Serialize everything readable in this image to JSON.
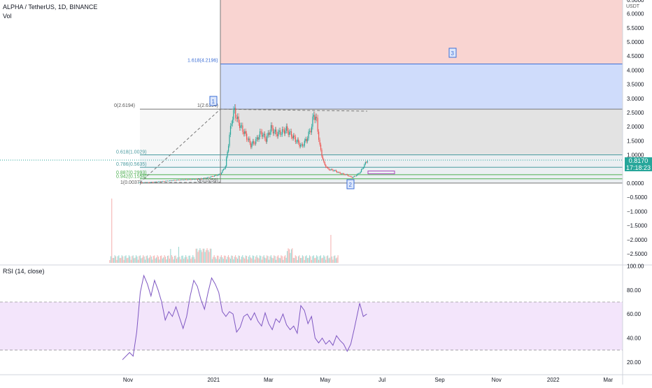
{
  "header": {
    "symbol_line": "ALPHA / TetherUS, 1D, BINANCE",
    "vol_label": "Vol",
    "rsi_label": "RSI (14, close)"
  },
  "price_axis": {
    "unit": "USDT",
    "ticks": [
      "6.0000",
      "5.5000",
      "5.0000",
      "4.5000",
      "4.0000",
      "3.5000",
      "3.0000",
      "2.5000",
      "2.0000",
      "1.5000",
      "1.0000",
      "0.5000",
      "0.0000",
      "−0.5000",
      "−1.0000",
      "−1.5000",
      "−2.0000",
      "−2.5000"
    ],
    "tick_values": [
      6.0,
      5.5,
      5.0,
      4.5,
      4.0,
      3.5,
      3.0,
      2.5,
      2.0,
      1.5,
      1.0,
      0.5,
      0.0,
      -0.5,
      -1.0,
      -1.5,
      -2.0,
      -2.5
    ],
    "top_partial": "6.5000"
  },
  "rsi_axis": {
    "ticks": [
      "100.00",
      "80.00",
      "60.00",
      "40.00",
      "20.00"
    ],
    "tick_values": [
      100,
      80,
      60,
      40,
      20
    ],
    "upper_band": 70,
    "lower_band": 30
  },
  "time_axis": {
    "labels": [
      "Nov",
      "2021",
      "Mar",
      "May",
      "Jul",
      "Sep",
      "Nov",
      "2022",
      "Mar"
    ],
    "label_days": [
      0,
      92,
      151,
      212,
      273,
      335,
      396,
      457,
      516
    ]
  },
  "current_price": {
    "value": "0.8170",
    "countdown": "17:18:23",
    "price": 0.817
  },
  "fib_extension": {
    "levels": [
      {
        "label": "0(2.6194)",
        "value": 2.6194
      },
      {
        "label": "1(2.6194)",
        "value": 2.6194
      },
      {
        "label": "1.618(4.2196)",
        "value": 4.2196
      },
      {
        "label": "0.618(1.0029)",
        "value": 1.0029
      },
      {
        "label": "0.786(0.5635)",
        "value": 0.5635
      },
      {
        "label": "0.887(0.2993)",
        "value": 0.2993
      },
      {
        "label": "0.942(0.1554)",
        "value": 0.1554
      },
      {
        "label": "1(0.0037)",
        "value": 0.0037
      },
      {
        "label": "0(0.0259)",
        "value": 0.0259
      }
    ],
    "markers": [
      "1",
      "2",
      "3"
    ],
    "colors": {
      "zone_red": "#f9d4d1",
      "zone_blue": "#cfdcfb",
      "zone_gray": "#e3e3e3",
      "zone_light": "#eef4f8",
      "line_teal": "#4a9ba0",
      "line_blue": "#3d6fd6",
      "line_green": "#4caf50",
      "line_gray": "#787878"
    }
  },
  "candles": {
    "up_color": "#26a69a",
    "down_color": "#ef5350",
    "close_path": [
      [
        0,
        0.02
      ],
      [
        10,
        0.03
      ],
      [
        20,
        0.06
      ],
      [
        30,
        0.09
      ],
      [
        40,
        0.12
      ],
      [
        50,
        0.13
      ],
      [
        60,
        0.15
      ],
      [
        70,
        0.22
      ],
      [
        80,
        0.32
      ],
      [
        85,
        0.6
      ],
      [
        88,
        1.4
      ],
      [
        91,
        2.2
      ],
      [
        94,
        2.6
      ],
      [
        96,
        2.3
      ],
      [
        100,
        2.0
      ],
      [
        105,
        1.7
      ],
      [
        110,
        1.35
      ],
      [
        115,
        1.5
      ],
      [
        120,
        1.8
      ],
      [
        125,
        1.55
      ],
      [
        130,
        1.95
      ],
      [
        135,
        1.75
      ],
      [
        140,
        1.8
      ],
      [
        145,
        1.9
      ],
      [
        150,
        1.7
      ],
      [
        155,
        1.5
      ],
      [
        160,
        1.3
      ],
      [
        165,
        1.55
      ],
      [
        170,
        2.0
      ],
      [
        172,
        2.45
      ],
      [
        175,
        2.2
      ],
      [
        178,
        1.3
      ],
      [
        182,
        0.7
      ],
      [
        186,
        0.5
      ],
      [
        192,
        0.45
      ],
      [
        198,
        0.35
      ],
      [
        204,
        0.3
      ],
      [
        210,
        0.2
      ],
      [
        214,
        0.28
      ],
      [
        218,
        0.4
      ],
      [
        222,
        0.65
      ],
      [
        225,
        0.82
      ]
    ]
  },
  "rsi": {
    "color": "#7e57c2",
    "band_fill": "#f3e5fb",
    "path": [
      [
        0,
        22
      ],
      [
        4,
        28
      ],
      [
        6,
        25
      ],
      [
        8,
        45
      ],
      [
        10,
        78
      ],
      [
        12,
        92
      ],
      [
        14,
        85
      ],
      [
        16,
        75
      ],
      [
        18,
        88
      ],
      [
        20,
        80
      ],
      [
        22,
        70
      ],
      [
        24,
        55
      ],
      [
        26,
        62
      ],
      [
        28,
        58
      ],
      [
        30,
        66
      ],
      [
        32,
        57
      ],
      [
        34,
        48
      ],
      [
        36,
        58
      ],
      [
        38,
        75
      ],
      [
        40,
        88
      ],
      [
        42,
        83
      ],
      [
        44,
        72
      ],
      [
        46,
        64
      ],
      [
        48,
        78
      ],
      [
        50,
        90
      ],
      [
        52,
        85
      ],
      [
        54,
        78
      ],
      [
        56,
        62
      ],
      [
        58,
        58
      ],
      [
        60,
        62
      ],
      [
        62,
        60
      ],
      [
        64,
        45
      ],
      [
        66,
        49
      ],
      [
        68,
        58
      ],
      [
        70,
        60
      ],
      [
        72,
        55
      ],
      [
        74,
        61
      ],
      [
        76,
        54
      ],
      [
        78,
        50
      ],
      [
        80,
        61
      ],
      [
        82,
        52
      ],
      [
        84,
        47
      ],
      [
        86,
        56
      ],
      [
        88,
        53
      ],
      [
        90,
        60
      ],
      [
        92,
        51
      ],
      [
        94,
        47
      ],
      [
        96,
        50
      ],
      [
        98,
        44
      ],
      [
        100,
        67
      ],
      [
        102,
        63
      ],
      [
        104,
        52
      ],
      [
        106,
        58
      ],
      [
        108,
        40
      ],
      [
        110,
        36
      ],
      [
        112,
        40
      ],
      [
        114,
        35
      ],
      [
        116,
        38
      ],
      [
        118,
        34
      ],
      [
        120,
        42
      ],
      [
        122,
        38
      ],
      [
        124,
        35
      ],
      [
        126,
        29
      ],
      [
        128,
        35
      ],
      [
        130,
        48
      ],
      [
        132,
        62
      ],
      [
        133,
        69
      ],
      [
        135,
        58
      ],
      [
        137,
        60
      ]
    ]
  }
}
